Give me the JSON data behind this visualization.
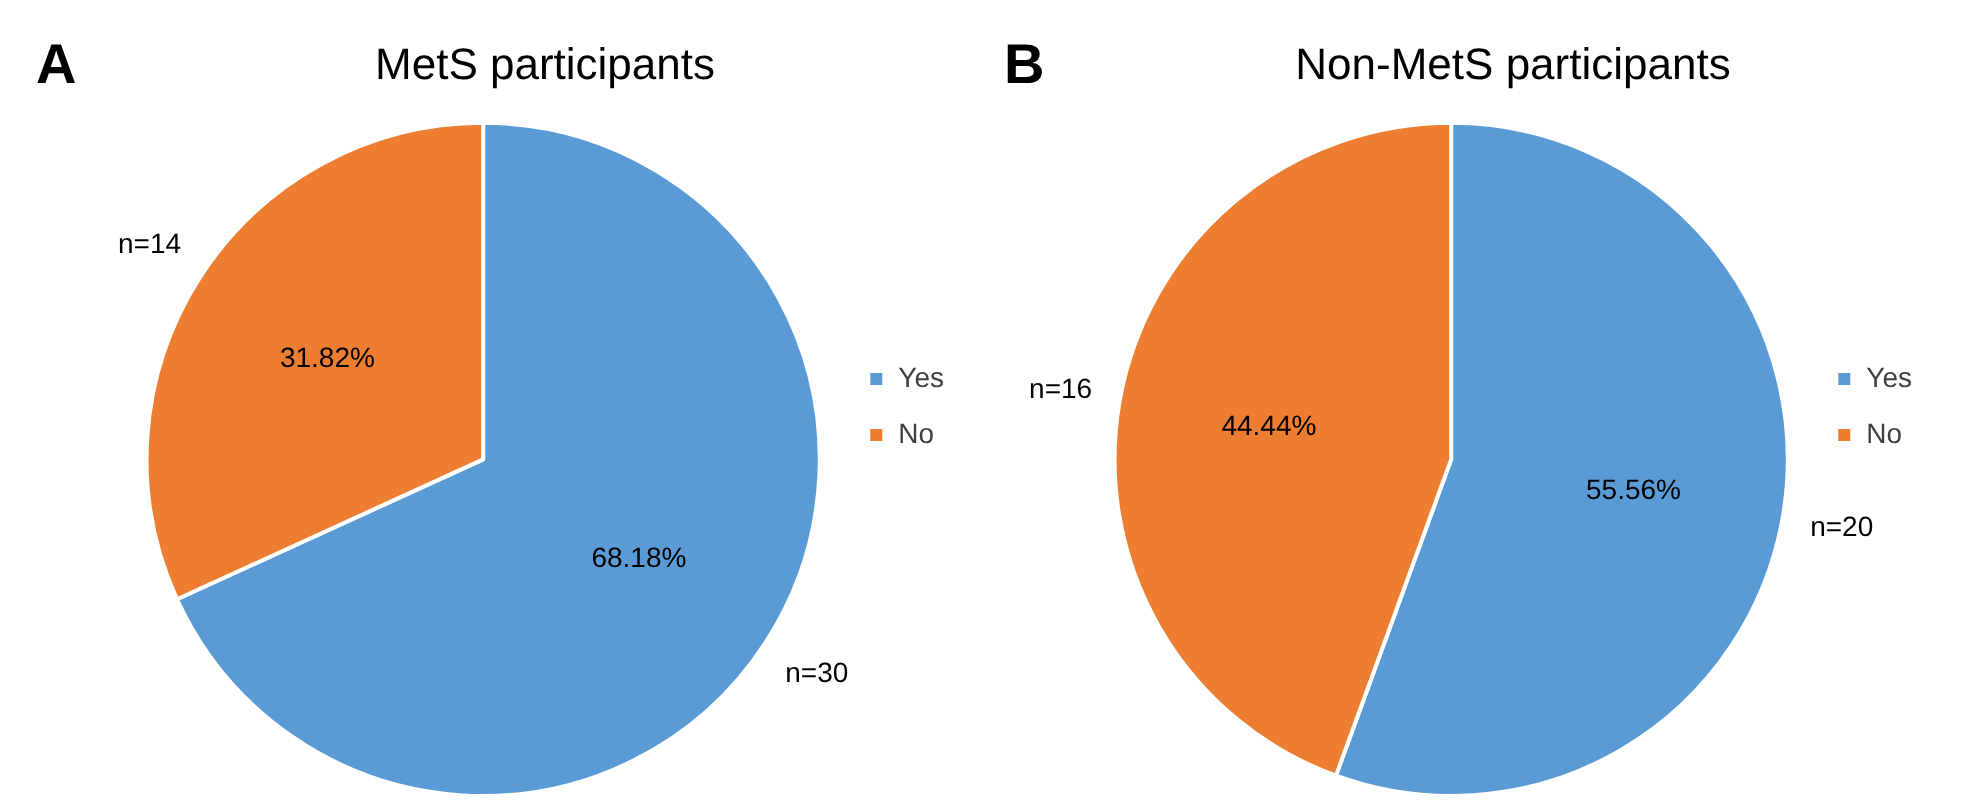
{
  "chart_data": [
    {
      "type": "pie",
      "title": "MetS participants",
      "categories": [
        "Yes",
        "No"
      ],
      "values": [
        68.18,
        31.82
      ],
      "colors": [
        "#5b9bd5",
        "#ed7d31"
      ],
      "value_labels": [
        "68.18%",
        "31.82%"
      ],
      "annotations": [
        "A",
        "n=30",
        "n=14"
      ],
      "legend": "right"
    },
    {
      "type": "pie",
      "title": "Non-MetS participants",
      "categories": [
        "Yes",
        "No"
      ],
      "values": [
        55.56,
        44.44
      ],
      "colors": [
        "#5b9bd5",
        "#ed7d31"
      ],
      "value_labels": [
        "55.56%",
        "44.44%"
      ],
      "annotations": [
        "B",
        "n=20",
        "n=16"
      ],
      "legend": "right"
    }
  ]
}
